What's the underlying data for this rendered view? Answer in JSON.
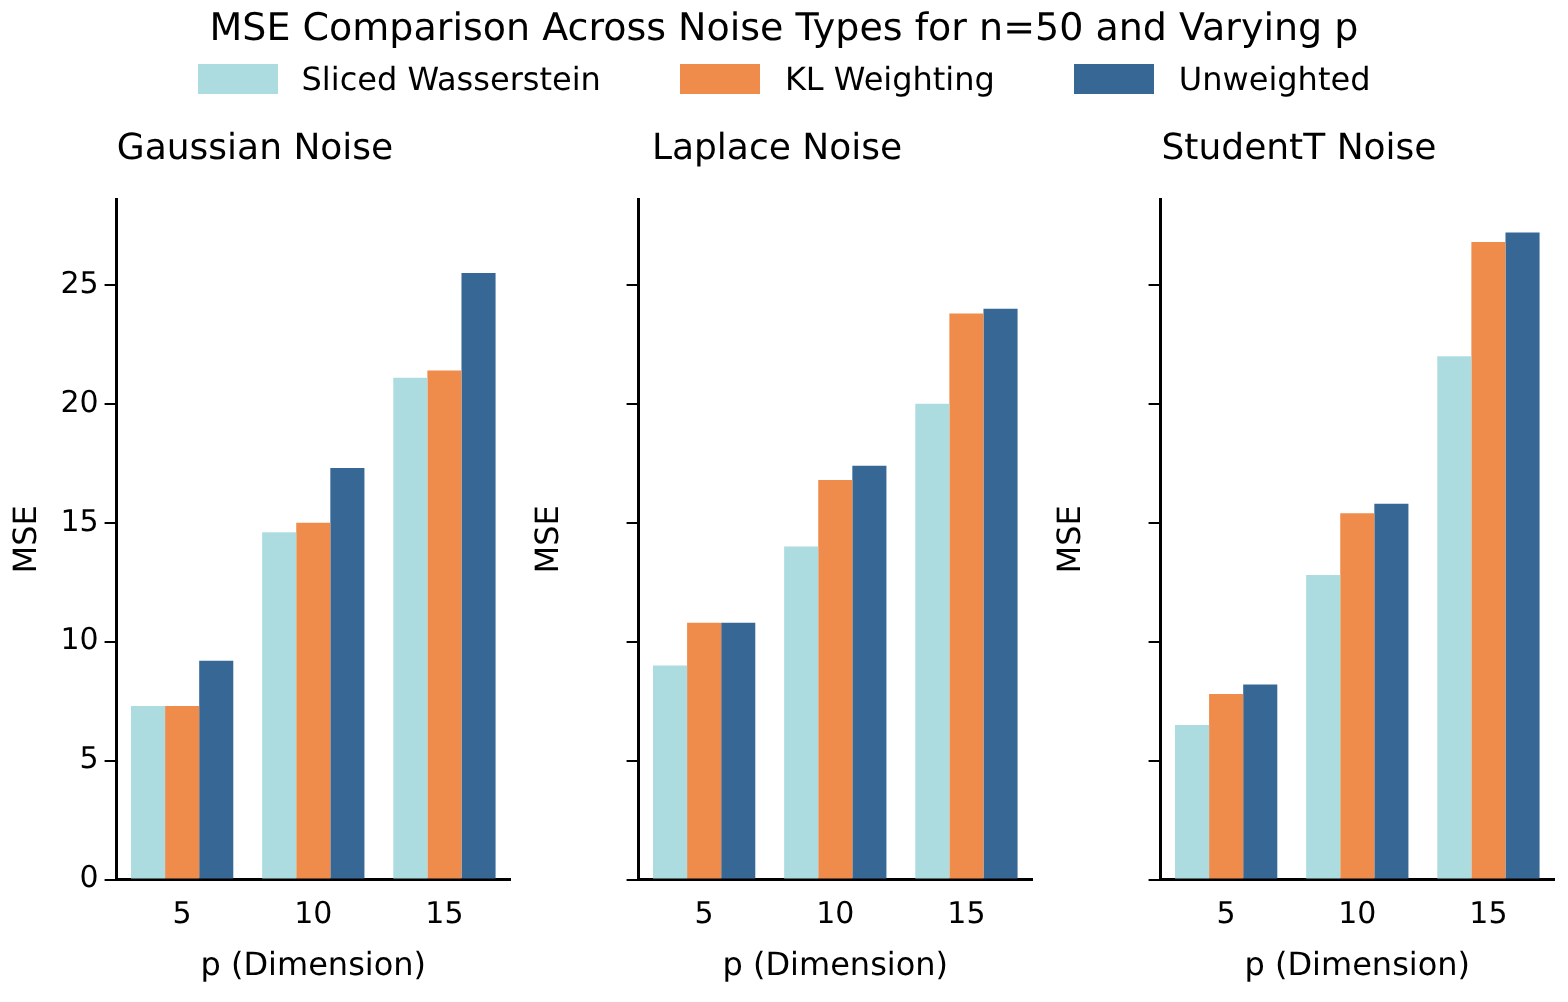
{
  "chart_data": [
    {
      "type": "bar",
      "title": "MSE Comparison Across Noise Types for n=50 and Varying p",
      "subtitle": "Gaussian Noise",
      "xlabel": "p (Dimension)",
      "ylabel": "MSE",
      "categories": [
        "5",
        "10",
        "15"
      ],
      "legend": "top",
      "ylim": [
        0,
        28.6
      ],
      "yticks": [
        0,
        5,
        10,
        15,
        20,
        25
      ],
      "series": [
        {
          "name": "Sliced Wasserstein",
          "color": "#acdce0",
          "values": [
            7.3,
            14.6,
            21.1
          ]
        },
        {
          "name": "KL Weighting",
          "color": "#ef8c4b",
          "values": [
            7.3,
            15.0,
            21.4
          ]
        },
        {
          "name": "Unweighted",
          "color": "#376795",
          "values": [
            9.2,
            17.3,
            25.5
          ]
        }
      ]
    },
    {
      "type": "bar",
      "subtitle": "Laplace Noise",
      "xlabel": "p (Dimension)",
      "ylabel": "MSE",
      "categories": [
        "5",
        "10",
        "15"
      ],
      "tick_labels": "x",
      "ylim": [
        0,
        28.6
      ],
      "yticks": [
        0,
        5,
        10,
        15,
        20,
        25
      ],
      "series": [
        {
          "color": "#acdce0",
          "values": [
            9.0,
            14.0,
            20.0
          ]
        },
        {
          "color": "#ef8c4b",
          "values": [
            10.8,
            16.8,
            23.8
          ]
        },
        {
          "color": "#376795",
          "values": [
            10.8,
            17.4,
            24.0
          ]
        }
      ]
    },
    {
      "type": "bar",
      "subtitle": "StudentT Noise",
      "xlabel": "p (Dimension)",
      "ylabel": "MSE",
      "categories": [
        "5",
        "10",
        "15"
      ],
      "tick_labels": "x",
      "ylim": [
        0,
        28.6
      ],
      "yticks": [
        0,
        5,
        10,
        15,
        20,
        25
      ],
      "series": [
        {
          "color": "#acdce0",
          "values": [
            6.5,
            12.8,
            22.0
          ]
        },
        {
          "color": "#ef8c4b",
          "values": [
            7.8,
            15.4,
            26.8
          ]
        },
        {
          "color": "#376795",
          "values": [
            8.2,
            15.8,
            27.2
          ]
        }
      ]
    }
  ]
}
